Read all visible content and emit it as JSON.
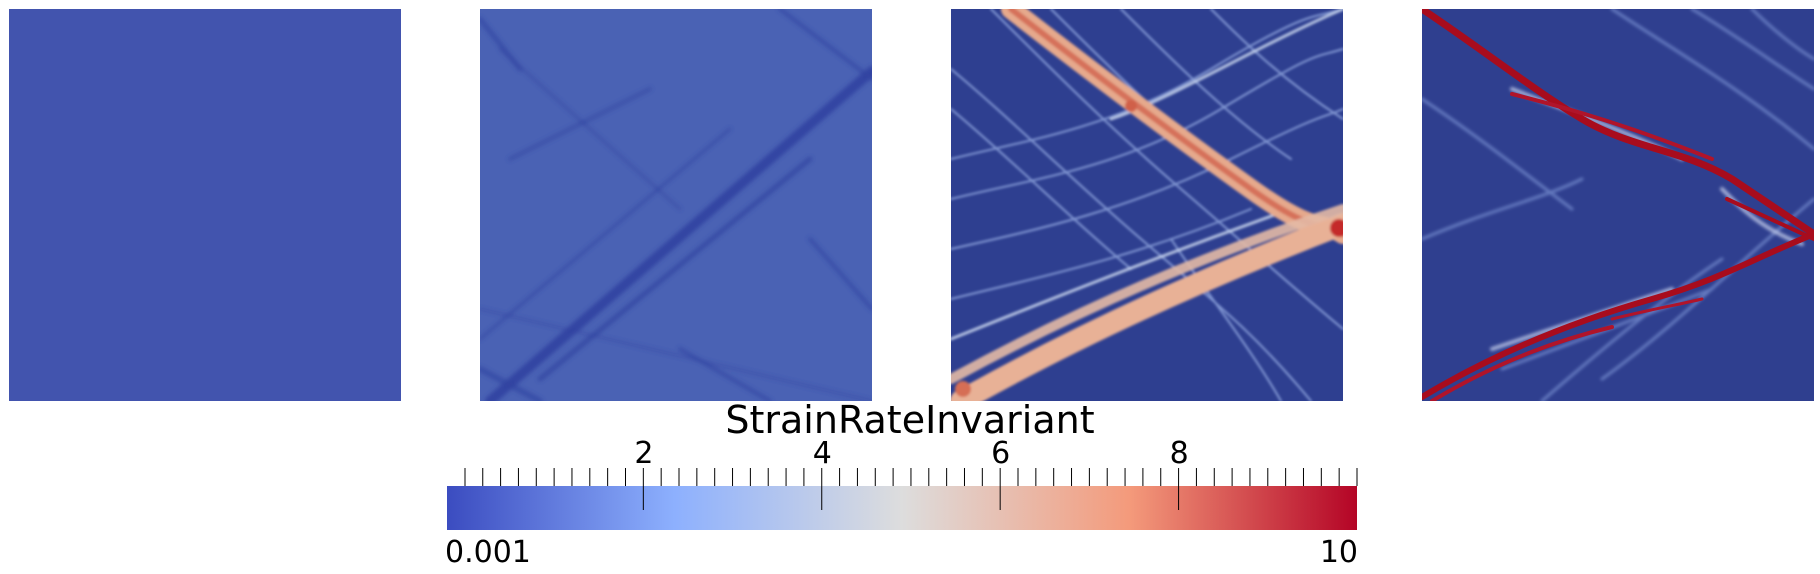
{
  "colorbar": {
    "title": "StrainRateInvariant",
    "min_label": "0.001",
    "max_label": "10",
    "major_ticks": [
      {
        "value": 2,
        "label": "2"
      },
      {
        "value": 4,
        "label": "4"
      },
      {
        "value": 6,
        "label": "6"
      },
      {
        "value": 8,
        "label": "8"
      }
    ],
    "range": [
      0.001,
      10
    ],
    "colormap": [
      "#3b4cc0",
      "#8db0fe",
      "#dddddd",
      "#f49a7b",
      "#b40426"
    ]
  },
  "panels": [
    {
      "id": "panel-1",
      "background": "#4254ae"
    },
    {
      "id": "panel-2",
      "background": "#4a62b4"
    },
    {
      "id": "panel-3",
      "background": "#2e3f90"
    },
    {
      "id": "panel-4",
      "background": "#2f3f8f"
    }
  ]
}
